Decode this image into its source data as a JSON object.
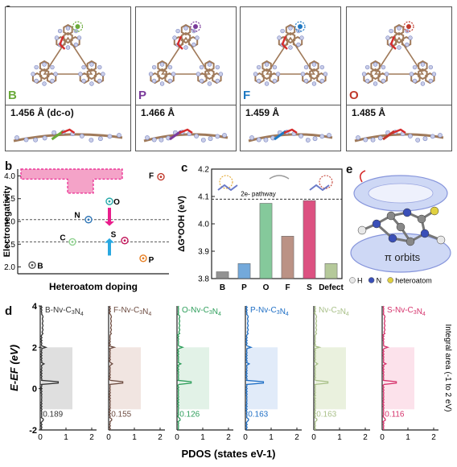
{
  "panel_a": {
    "label": "a",
    "items": [
      {
        "element": "B",
        "color": "#6aaa3a",
        "bond": "1.456 Å (dc-o)"
      },
      {
        "element": "P",
        "color": "#7a3a9a",
        "bond": "1.466 Å"
      },
      {
        "element": "F",
        "color": "#1e78c2",
        "bond": "1.459 Å"
      },
      {
        "element": "O",
        "color": "#c0392b",
        "bond": "1.485 Å"
      }
    ]
  },
  "panel_b": {
    "label": "b",
    "ylabel": "Electronegativity",
    "xlabel": "Heteroatom doping",
    "yticks": [
      "2.0",
      "2.5",
      "3.0",
      "3.5",
      "4.0"
    ],
    "points": [
      {
        "name": "B",
        "value": 2.04,
        "color": "#555555"
      },
      {
        "name": "C",
        "value": 2.55,
        "color": "#8fd18f"
      },
      {
        "name": "N",
        "value": 3.04,
        "color": "#2e75b6"
      },
      {
        "name": "O",
        "value": 3.44,
        "color": "#27a9a9"
      },
      {
        "name": "S",
        "value": 2.58,
        "color": "#c2185b"
      },
      {
        "name": "P",
        "value": 2.19,
        "color": "#e67e22"
      },
      {
        "name": "F",
        "value": 3.98,
        "color": "#c0392b"
      }
    ]
  },
  "panel_c": {
    "label": "c",
    "ylabel": "ΔG*OOH (eV)",
    "annotation": "2e- pathway",
    "chart_data": {
      "type": "bar",
      "categories": [
        "B",
        "P",
        "O",
        "F",
        "S",
        "Defect"
      ],
      "values": [
        3.825,
        3.855,
        4.075,
        3.955,
        4.085,
        3.855
      ],
      "colors": [
        "#7f7f7f",
        "#5b9bd5",
        "#70c08a",
        "#b08070",
        "#d6336c",
        "#a9c089"
      ],
      "ylim": [
        3.8,
        4.2
      ],
      "yticks": [
        3.8,
        3.9,
        4.0,
        4.1,
        4.2
      ],
      "reference_line": 4.09
    }
  },
  "panel_e": {
    "label": "e",
    "orbit_label": "π orbits",
    "legend": [
      {
        "label": "H",
        "color": "#e8e8e8"
      },
      {
        "label": "N",
        "color": "#3a4fb8"
      },
      {
        "label": "heteroatom",
        "color": "#e0d040"
      }
    ]
  },
  "panel_d": {
    "label": "d",
    "ylabel": "E-EF (eV)",
    "xlabel": "PDOS (states eV-1)",
    "right_label": "Integral area (-1 to 2 eV)",
    "yticks": [
      "-2",
      "0",
      "2",
      "4"
    ],
    "xticks": [
      "0",
      "1",
      "2"
    ],
    "subplots": [
      {
        "title": "B-Nv-C3N4",
        "value": "0.189",
        "color": "#333333",
        "fill": "#d9d9d9"
      },
      {
        "title": "F-Nv-C3N4",
        "value": "0.155",
        "color": "#6d4c41",
        "fill": "#efe0dc"
      },
      {
        "title": "O-Nv-C3N4",
        "value": "0.126",
        "color": "#2e9e5b",
        "fill": "#ddf0e3"
      },
      {
        "title": "P-Nv-C3N4",
        "value": "0.163",
        "color": "#1f6fc5",
        "fill": "#dce8f8"
      },
      {
        "title": "Nv-C3N4",
        "value": "0.163",
        "color": "#a9c089",
        "fill": "#e6eed8"
      },
      {
        "title": "S-Nv-C3N4",
        "value": "0.116",
        "color": "#d6336c",
        "fill": "#fbdde8"
      }
    ]
  }
}
